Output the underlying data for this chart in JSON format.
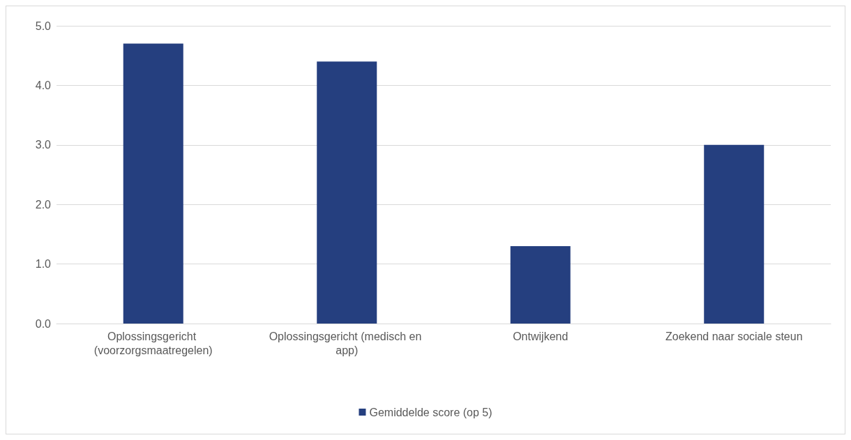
{
  "chart_data": {
    "type": "bar",
    "categories": [
      "Oplossingsgericht (voorzorgsmaatregelen)",
      "Oplossingsgericht (medisch en app)",
      "Ontwijkend",
      "Zoekend naar sociale steun"
    ],
    "series": [
      {
        "name": "Gemiddelde score (op 5)",
        "color": "#253f7f",
        "values": [
          4.7,
          4.4,
          1.3,
          3.0
        ]
      }
    ],
    "ylim": [
      0,
      5
    ],
    "yticks": [
      {
        "value": 0,
        "label": "0.0"
      },
      {
        "value": 1,
        "label": "1.0"
      },
      {
        "value": 2,
        "label": "2.0"
      },
      {
        "value": 3,
        "label": "3.0"
      },
      {
        "value": 4,
        "label": "4.0"
      },
      {
        "value": 5,
        "label": "5.0"
      }
    ],
    "grid": "y",
    "legend": "bottom"
  }
}
